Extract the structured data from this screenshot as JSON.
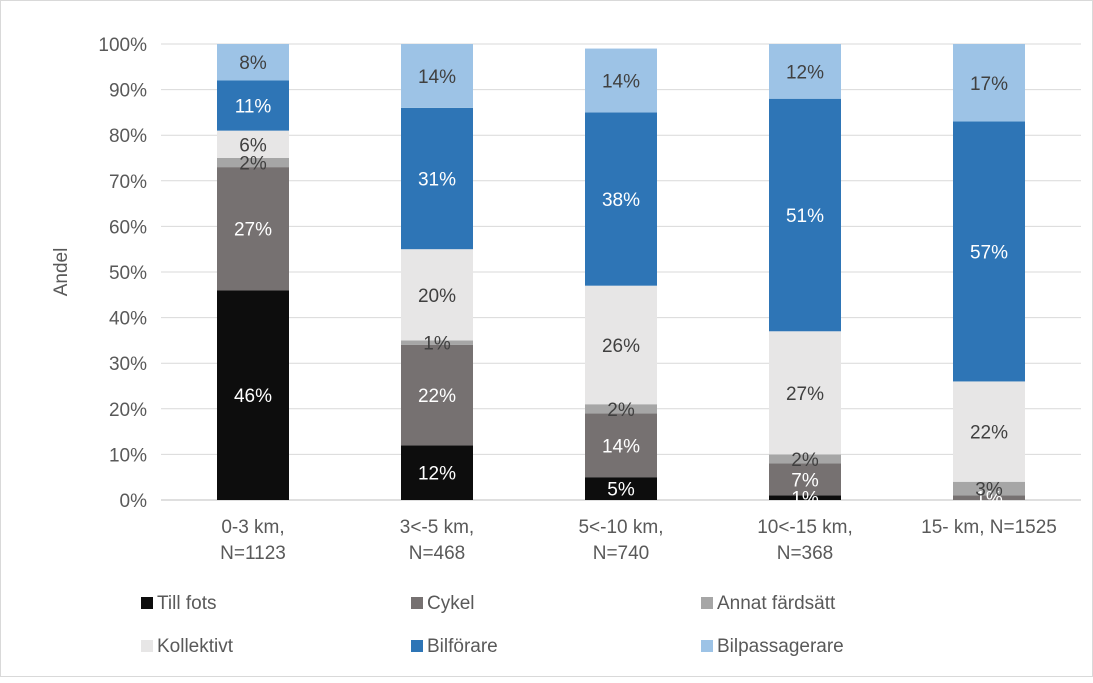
{
  "chart_data": {
    "type": "bar",
    "stacked": true,
    "percent": true,
    "ylabel": "Andel",
    "xlabel": "",
    "ylim": [
      0,
      100
    ],
    "yticks": [
      "0%",
      "10%",
      "20%",
      "30%",
      "40%",
      "50%",
      "60%",
      "70%",
      "80%",
      "90%",
      "100%"
    ],
    "grid": true,
    "legend_position": "bottom",
    "categories": [
      [
        "0-3 km,",
        "N=1123"
      ],
      [
        "3<-5 km,",
        "N=468"
      ],
      [
        "5<-10 km,",
        "N=740"
      ],
      [
        "10<-15 km,",
        "N=368"
      ],
      [
        "15- km, N=1525"
      ]
    ],
    "series": [
      {
        "name": "Till fots",
        "color": "#0d0d0d",
        "label_color": "#ffffff",
        "values": [
          46,
          12,
          5,
          1,
          0
        ],
        "labels": [
          "46%",
          "12%",
          "5%",
          "1%",
          ""
        ]
      },
      {
        "name": "Cykel",
        "color": "#767171",
        "label_color": "#ffffff",
        "values": [
          27,
          22,
          14,
          7,
          1
        ],
        "labels": [
          "27%",
          "22%",
          "14%",
          "7%",
          "1%"
        ]
      },
      {
        "name": "Annat färdsätt",
        "color": "#a6a6a6",
        "label_color": "#404040",
        "values": [
          2,
          1,
          2,
          2,
          3
        ],
        "labels": [
          "2%",
          "1%",
          "2%",
          "2%",
          "3%"
        ]
      },
      {
        "name": "Kollektivt",
        "color": "#e7e6e6",
        "label_color": "#404040",
        "values": [
          6,
          20,
          26,
          27,
          22
        ],
        "labels": [
          "6%",
          "20%",
          "26%",
          "27%",
          "22%"
        ]
      },
      {
        "name": "Bilförare",
        "color": "#2e75b6",
        "label_color": "#ffffff",
        "values": [
          11,
          31,
          38,
          51,
          57
        ],
        "labels": [
          "11%",
          "31%",
          "38%",
          "51%",
          "57%"
        ]
      },
      {
        "name": "Bilpassagerare",
        "color": "#9dc3e6",
        "label_color": "#404040",
        "values": [
          8,
          14,
          14,
          12,
          17
        ],
        "labels": [
          "8%",
          "14%",
          "14%",
          "12%",
          "17%"
        ]
      }
    ]
  }
}
